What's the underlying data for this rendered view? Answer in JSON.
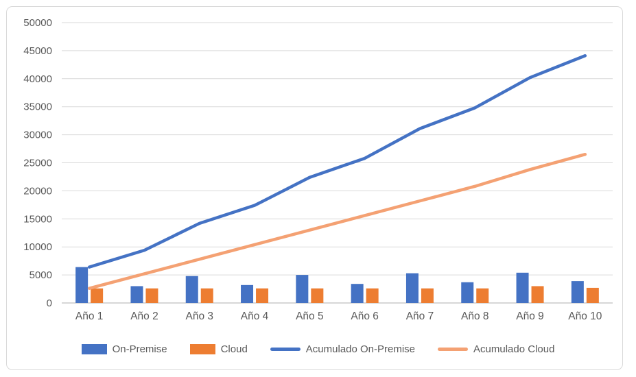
{
  "chart_data": {
    "type": "combo",
    "title": "",
    "categories": [
      "Año 1",
      "Año 2",
      "Año 3",
      "Año 4",
      "Año 5",
      "Año 6",
      "Año 7",
      "Año 8",
      "Año 9",
      "Año 10"
    ],
    "series": [
      {
        "name": "On-Premise",
        "type": "bar",
        "color": "#4472C4",
        "values": [
          6400,
          3000,
          4800,
          3200,
          5000,
          3400,
          5300,
          3700,
          5400,
          3900
        ]
      },
      {
        "name": "Cloud",
        "type": "bar",
        "color": "#ED7D31",
        "values": [
          2600,
          2600,
          2600,
          2600,
          2600,
          2600,
          2600,
          2600,
          3000,
          2700
        ]
      },
      {
        "name": "Acumulado On-Premise",
        "type": "line",
        "color": "#4472C4",
        "values": [
          6400,
          9400,
          14200,
          17400,
          22400,
          25800,
          31100,
          34800,
          40200,
          44100
        ]
      },
      {
        "name": "Acumulado Cloud",
        "type": "line",
        "color": "#F4A173",
        "values": [
          2600,
          5200,
          7800,
          10400,
          13000,
          15600,
          18200,
          20800,
          23800,
          26500
        ]
      }
    ],
    "ylim": [
      0,
      50000
    ],
    "yticks": [
      0,
      5000,
      10000,
      15000,
      20000,
      25000,
      30000,
      35000,
      40000,
      45000,
      50000
    ],
    "grid": "horizontal",
    "legend_position": "bottom"
  },
  "colors": {
    "background": "#FFFFFF",
    "chart_border": "#D9D9D9",
    "gridline": "#D9D9D9",
    "axis_line": "#BFBFBF",
    "label_text": "#595959"
  }
}
